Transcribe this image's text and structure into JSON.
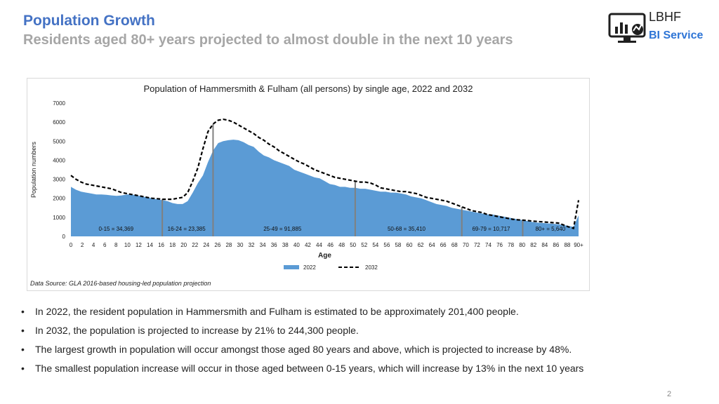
{
  "header": {
    "title": "Population Growth",
    "subtitle": "Residents aged 80+ years projected to almost double in the next 10 years"
  },
  "logo": {
    "line1": "LBHF",
    "line2": "BI Service",
    "icon": "monitor-chart-icon"
  },
  "chart_data": {
    "type": "area",
    "title": "Population of Hammersmith & Fulham (all persons) by single age, 2022 and 2032",
    "xlabel": "Age",
    "ylabel": "Population numbers",
    "ylim": [
      0,
      7000
    ],
    "yticks": [
      0,
      1000,
      2000,
      3000,
      4000,
      5000,
      6000,
      7000
    ],
    "xticks": [
      "0",
      "2",
      "4",
      "6",
      "8",
      "10",
      "12",
      "14",
      "16",
      "18",
      "20",
      "22",
      "24",
      "26",
      "28",
      "30",
      "32",
      "34",
      "36",
      "38",
      "40",
      "42",
      "44",
      "46",
      "48",
      "50",
      "52",
      "54",
      "56",
      "58",
      "60",
      "62",
      "64",
      "66",
      "68",
      "70",
      "72",
      "74",
      "76",
      "78",
      "80",
      "82",
      "84",
      "86",
      "88",
      "90+"
    ],
    "legend": {
      "position": "bottom",
      "items": [
        "2022",
        "2032"
      ]
    },
    "colors": {
      "area_2022": "#5B9BD5",
      "line_2032": "#000000",
      "divider": "#808080"
    },
    "series": [
      {
        "name": "2022",
        "style": "area",
        "values": [
          2600,
          2450,
          2350,
          2300,
          2250,
          2200,
          2200,
          2180,
          2150,
          2130,
          2150,
          2200,
          2200,
          2150,
          2100,
          2050,
          2000,
          1950,
          1900,
          1850,
          1750,
          1700,
          1700,
          1850,
          2300,
          2800,
          3200,
          3900,
          4500,
          4900,
          5000,
          5050,
          5080,
          5050,
          4950,
          4800,
          4700,
          4450,
          4250,
          4150,
          4000,
          3900,
          3800,
          3700,
          3500,
          3400,
          3300,
          3200,
          3100,
          3050,
          2900,
          2750,
          2700,
          2600,
          2600,
          2550,
          2550,
          2500,
          2500,
          2450,
          2400,
          2350,
          2350,
          2300,
          2300,
          2250,
          2200,
          2100,
          2050,
          2000,
          1900,
          1800,
          1700,
          1650,
          1600,
          1500,
          1450,
          1400,
          1350,
          1300,
          1250,
          1200,
          1150,
          1150,
          1100,
          1050,
          1000,
          950,
          900,
          850,
          800,
          750,
          720,
          700,
          680,
          660,
          640,
          600,
          550,
          500,
          1100
        ]
      },
      {
        "name": "2032",
        "style": "dashed-line",
        "values": [
          3200,
          3000,
          2850,
          2750,
          2700,
          2650,
          2600,
          2550,
          2500,
          2400,
          2300,
          2250,
          2200,
          2150,
          2100,
          2050,
          2000,
          1980,
          1950,
          1950,
          1950,
          2000,
          2050,
          2300,
          2900,
          3600,
          4600,
          5500,
          5900,
          6100,
          6150,
          6100,
          6000,
          5850,
          5700,
          5550,
          5400,
          5200,
          5050,
          4850,
          4700,
          4500,
          4350,
          4200,
          4050,
          3900,
          3800,
          3650,
          3500,
          3400,
          3300,
          3200,
          3100,
          3050,
          3000,
          2950,
          2900,
          2850,
          2850,
          2800,
          2700,
          2550,
          2500,
          2450,
          2400,
          2350,
          2350,
          2300,
          2250,
          2150,
          2050,
          2000,
          1950,
          1900,
          1850,
          1750,
          1650,
          1550,
          1450,
          1350,
          1300,
          1250,
          1150,
          1100,
          1050,
          1000,
          950,
          900,
          870,
          850,
          830,
          800,
          780,
          760,
          740,
          720,
          700,
          600,
          500,
          420,
          1900
        ]
      }
    ],
    "segments": [
      {
        "label": "0-15 = 34,369",
        "from": 0,
        "to": 15
      },
      {
        "label": "16-24 = 23,385",
        "from": 16,
        "to": 24
      },
      {
        "label": "25-49 = 91,885",
        "from": 25,
        "to": 49
      },
      {
        "label": "50-68 = 35,410",
        "from": 50,
        "to": 68
      },
      {
        "label": "69-79 = 10,717",
        "from": 69,
        "to": 79
      },
      {
        "label": "80+ = 5,640",
        "from": 80,
        "to": 90
      }
    ],
    "source": "Data Source: GLA 2016-based housing-led population projection"
  },
  "bullets": [
    "In 2022, the resident population in Hammersmith and Fulham is estimated to be approximately 201,400 people.",
    "In 2032, the population is projected to increase by 21% to 244,300 people.",
    "The largest growth in population will occur amongst those aged 80 years and above, which is projected to increase by 48%.",
    "The smallest population increase will occur in those aged between 0-15 years, which will increase by 13% in the next 10 years"
  ],
  "bullet_symbol": "•",
  "page_number": "2"
}
